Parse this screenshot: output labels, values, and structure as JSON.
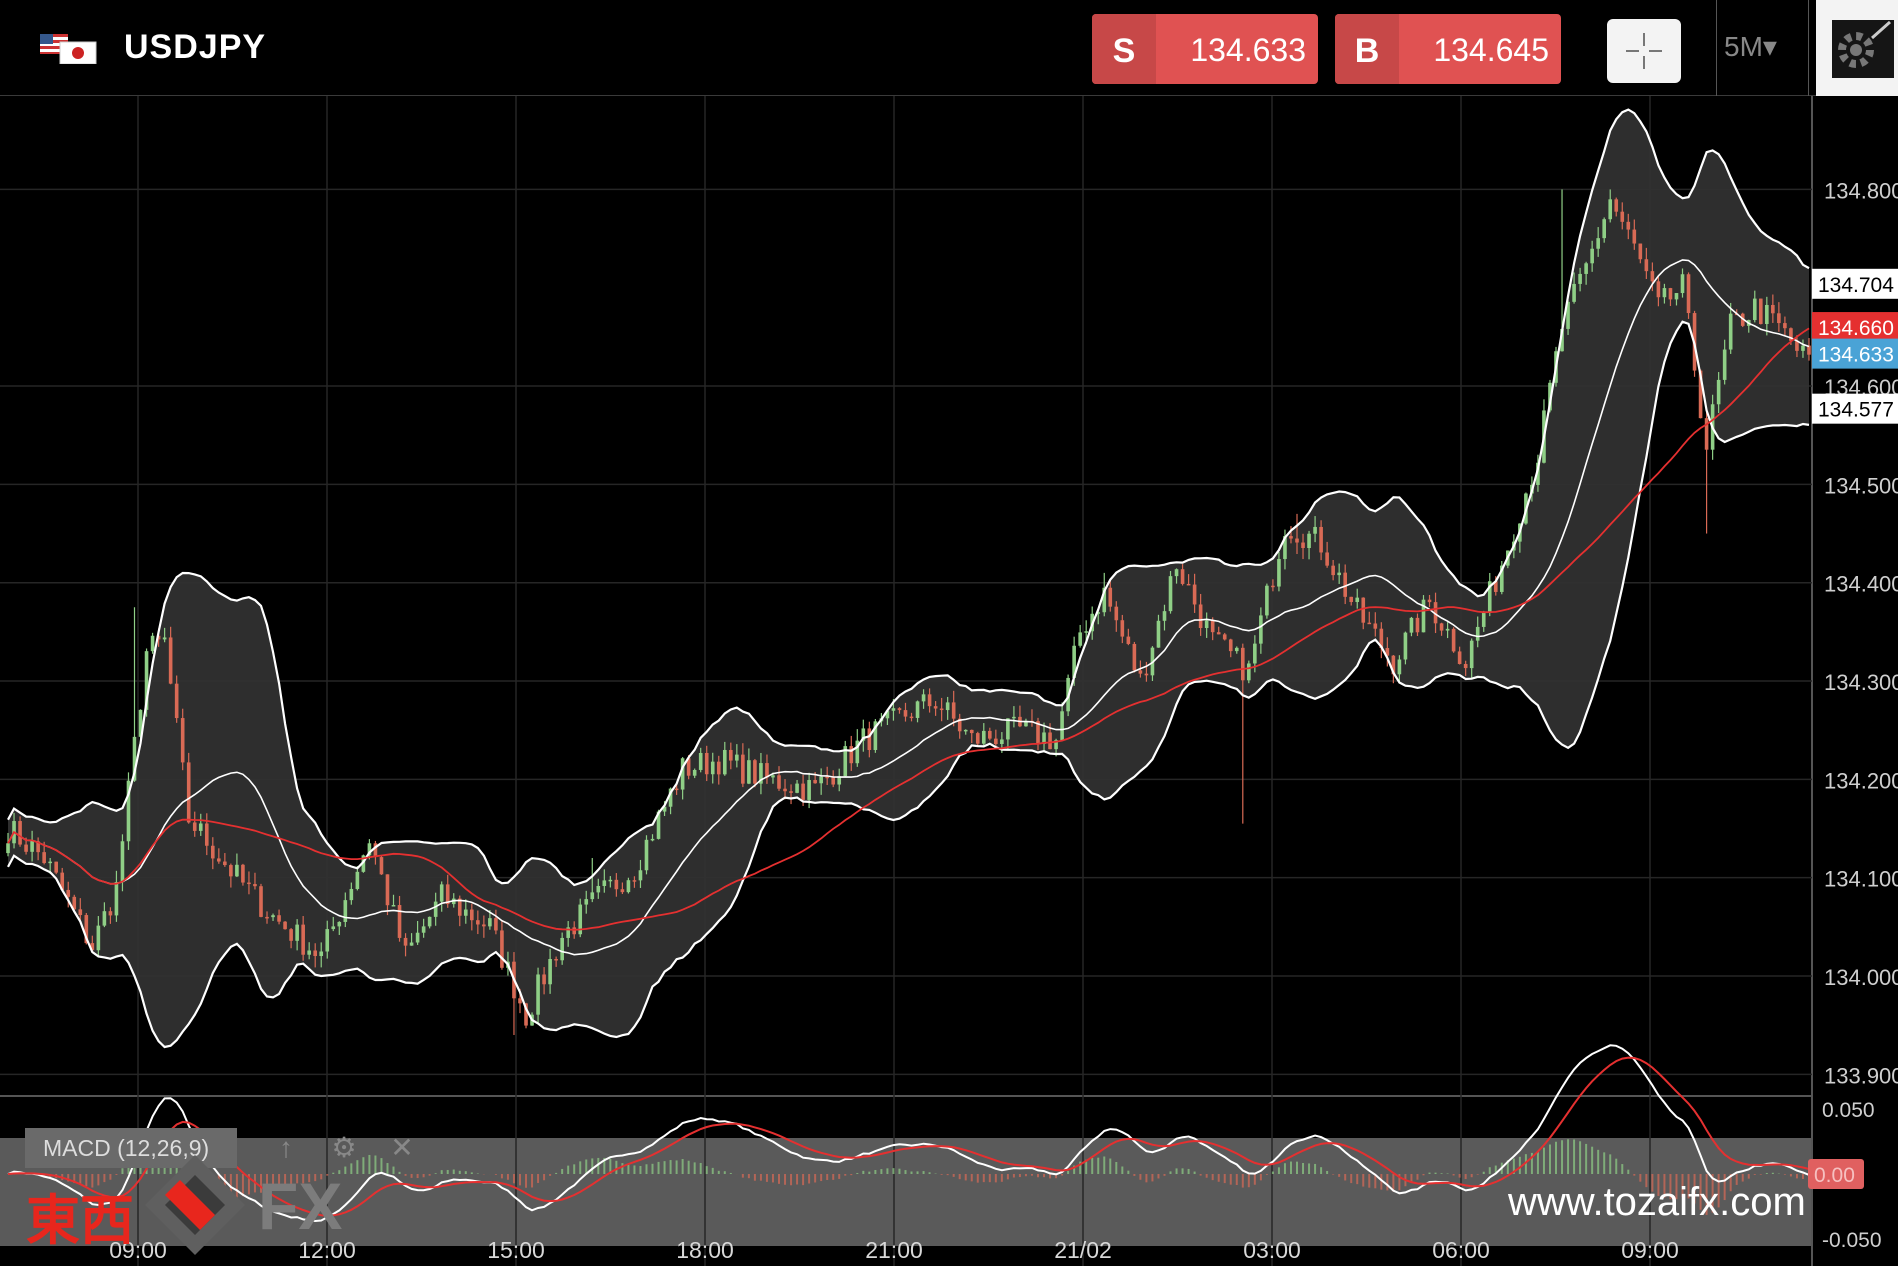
{
  "header": {
    "symbol": "USDJPY",
    "sell": {
      "side": "S",
      "price": "134.633"
    },
    "buy": {
      "side": "B",
      "price": "134.645"
    },
    "timeframe": "5M▾"
  },
  "indicator": {
    "macd_label": "MACD (12,26,9)",
    "up_glyph": "↑",
    "gear_glyph": "⚙",
    "close_glyph": "✕"
  },
  "watermark": {
    "cjk": "東西",
    "fx": "FX",
    "url": "www.tozaifx.com"
  },
  "colors": {
    "background": "#000000",
    "grid": "#262626",
    "up": "#8fcf86",
    "down": "#d96a55",
    "band_fill": "#303030",
    "band_line": "#ffffff",
    "ma": "#e53030",
    "sell": "#e05252",
    "buy": "#e05252",
    "bid_tag": "#4aa3d6",
    "ma_tag": "#e53030"
  },
  "chart_data": [
    {
      "type": "candlestick",
      "symbol": "USDJPY",
      "interval": "5M",
      "x_ticks": [
        "09:00",
        "12:00",
        "15:00",
        "18:00",
        "21:00",
        "21/02",
        "03:00",
        "06:00",
        "09:00"
      ],
      "y_ticks": [
        "133.900",
        "134.000",
        "134.100",
        "134.200",
        "134.300",
        "134.400",
        "134.500",
        "134.600",
        "134.800"
      ],
      "ylim": [
        133.88,
        134.895
      ],
      "price_tags": [
        {
          "label": "134.704",
          "value": 134.704,
          "role": "upper-band"
        },
        {
          "label": "134.660",
          "value": 134.66,
          "role": "ma"
        },
        {
          "label": "134.633",
          "value": 134.633,
          "role": "bid"
        },
        {
          "label": "134.577",
          "value": 134.577,
          "role": "lower-band"
        }
      ],
      "close_waypoints": [
        {
          "t": 0,
          "v": 134.15
        },
        {
          "t": 6,
          "v": 134.12
        },
        {
          "t": 14,
          "v": 134.03
        },
        {
          "t": 18,
          "v": 134.09
        },
        {
          "t": 23,
          "v": 134.33
        },
        {
          "t": 26,
          "v": 134.34
        },
        {
          "t": 30,
          "v": 134.16
        },
        {
          "t": 38,
          "v": 134.1
        },
        {
          "t": 44,
          "v": 134.06
        },
        {
          "t": 52,
          "v": 134.02
        },
        {
          "t": 60,
          "v": 134.14
        },
        {
          "t": 66,
          "v": 134.02
        },
        {
          "t": 72,
          "v": 134.08
        },
        {
          "t": 80,
          "v": 134.05
        },
        {
          "t": 86,
          "v": 133.96
        },
        {
          "t": 92,
          "v": 134.04
        },
        {
          "t": 98,
          "v": 134.08
        },
        {
          "t": 104,
          "v": 134.11
        },
        {
          "t": 112,
          "v": 134.21
        },
        {
          "t": 118,
          "v": 134.22
        },
        {
          "t": 126,
          "v": 134.2
        },
        {
          "t": 134,
          "v": 134.19
        },
        {
          "t": 142,
          "v": 134.24
        },
        {
          "t": 150,
          "v": 134.27
        },
        {
          "t": 154,
          "v": 134.28
        },
        {
          "t": 160,
          "v": 134.24
        },
        {
          "t": 168,
          "v": 134.25
        },
        {
          "t": 174,
          "v": 134.24
        },
        {
          "t": 178,
          "v": 134.35
        },
        {
          "t": 182,
          "v": 134.39
        },
        {
          "t": 188,
          "v": 134.3
        },
        {
          "t": 194,
          "v": 134.42
        },
        {
          "t": 200,
          "v": 134.34
        },
        {
          "t": 206,
          "v": 134.31
        },
        {
          "t": 212,
          "v": 134.46
        },
        {
          "t": 218,
          "v": 134.44
        },
        {
          "t": 224,
          "v": 134.37
        },
        {
          "t": 230,
          "v": 134.32
        },
        {
          "t": 236,
          "v": 134.38
        },
        {
          "t": 242,
          "v": 134.32
        },
        {
          "t": 248,
          "v": 134.42
        },
        {
          "t": 254,
          "v": 134.53
        },
        {
          "t": 258,
          "v": 134.66
        },
        {
          "t": 262,
          "v": 134.72
        },
        {
          "t": 266,
          "v": 134.79
        },
        {
          "t": 270,
          "v": 134.74
        },
        {
          "t": 274,
          "v": 134.68
        },
        {
          "t": 278,
          "v": 134.7
        },
        {
          "t": 282,
          "v": 134.54
        },
        {
          "t": 286,
          "v": 134.66
        },
        {
          "t": 290,
          "v": 134.68
        },
        {
          "t": 294,
          "v": 134.66
        },
        {
          "t": 298,
          "v": 134.63
        }
      ],
      "wick_spikes": [
        {
          "t": 21,
          "v": 134.375
        },
        {
          "t": 84,
          "v": 133.94
        },
        {
          "t": 97,
          "v": 134.12
        },
        {
          "t": 182,
          "v": 134.41
        },
        {
          "t": 205,
          "v": 134.155
        },
        {
          "t": 214,
          "v": 134.47
        },
        {
          "t": 258,
          "v": 134.8
        },
        {
          "t": 266,
          "v": 134.8
        },
        {
          "t": 282,
          "v": 134.45
        }
      ],
      "bands_period": 20,
      "bands_stddev": 2,
      "ma_period": 50
    },
    {
      "type": "line",
      "name": "MACD (12,26,9)",
      "y_ticks": [
        "0.050",
        "0.00",
        "-0.050"
      ],
      "current_value_tag": "0.00",
      "series": [
        "macd",
        "signal",
        "histogram"
      ]
    }
  ]
}
